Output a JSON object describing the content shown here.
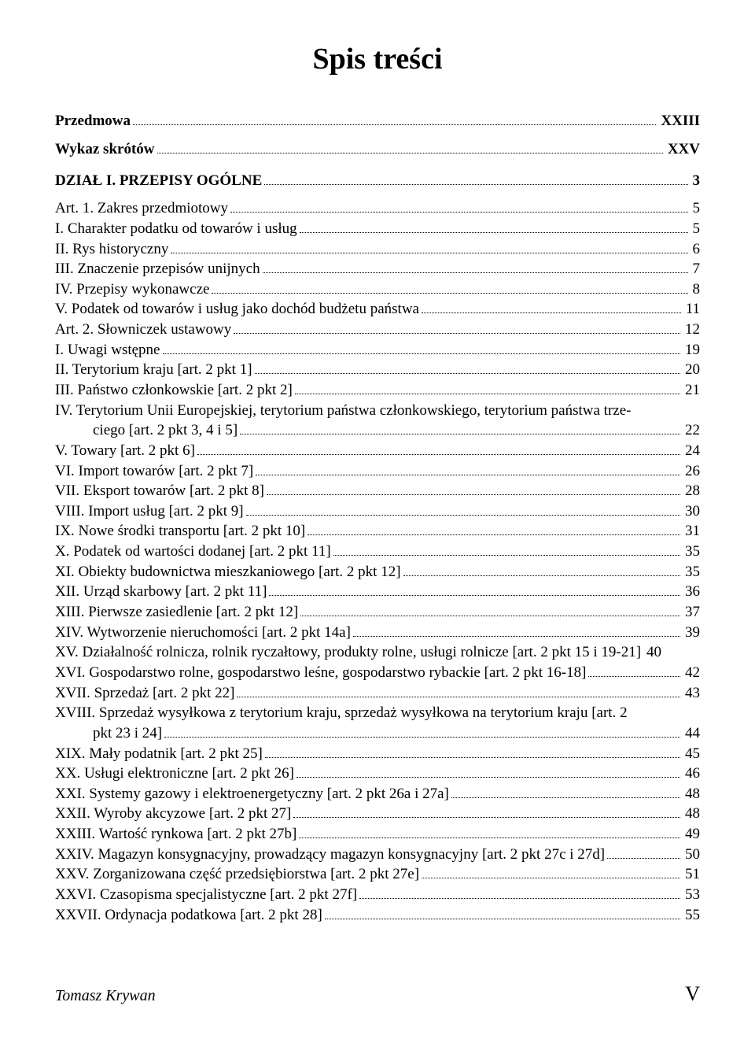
{
  "title": "Spis treści",
  "entries": [
    {
      "label": "Przedmowa",
      "page": "XXIII",
      "style": "level0",
      "spacer_after": "sm"
    },
    {
      "label": "Wykaz skrótów",
      "page": "XXV",
      "style": "level0",
      "spacer_after": "md"
    },
    {
      "label": "DZIAŁ I. PRZEPISY OGÓLNE",
      "page": "3",
      "style": "level0",
      "spacer_after": "sm"
    },
    {
      "label": "Art. 1. Zakres przedmiotowy",
      "page": "5",
      "style": "level1"
    },
    {
      "label": "I. Charakter podatku od towarów i usług",
      "page": "5",
      "style": "level2"
    },
    {
      "label": "II. Rys historyczny",
      "page": "6",
      "style": "level2"
    },
    {
      "label": "III. Znaczenie przepisów unijnych",
      "page": "7",
      "style": "level2"
    },
    {
      "label": "IV. Przepisy wykonawcze",
      "page": "8",
      "style": "level2"
    },
    {
      "label": "V. Podatek od towarów i usług jako dochód budżetu państwa",
      "page": "11",
      "style": "level2"
    },
    {
      "label": "Art. 2. Słowniczek ustawowy",
      "page": "12",
      "style": "level1"
    },
    {
      "label": "I. Uwagi wstępne",
      "page": "19",
      "style": "level2"
    },
    {
      "label": "II. Terytorium kraju [art. 2 pkt 1]",
      "page": "20",
      "style": "level2"
    },
    {
      "label": "III. Państwo członkowskie [art. 2 pkt 2]",
      "page": "21",
      "style": "level2"
    },
    {
      "label": "IV. Terytorium Unii Europejskiej, terytorium państwa członkowskiego, terytorium państwa trze-",
      "cont": "ciego [art. 2 pkt 3, 4 i 5]",
      "page": "22",
      "style": "level2",
      "wrap": true
    },
    {
      "label": "V. Towary [art. 2 pkt 6]",
      "page": "24",
      "style": "level2"
    },
    {
      "label": "VI. Import towarów [art. 2 pkt 7]",
      "page": "26",
      "style": "level2"
    },
    {
      "label": "VII. Eksport towarów [art. 2 pkt 8]",
      "page": "28",
      "style": "level2"
    },
    {
      "label": "VIII. Import usług [art. 2 pkt 9]",
      "page": "30",
      "style": "level2"
    },
    {
      "label": "IX. Nowe środki transportu [art. 2 pkt 10]",
      "page": "31",
      "style": "level2"
    },
    {
      "label": "X. Podatek od wartości dodanej [art. 2 pkt 11]",
      "page": "35",
      "style": "level2"
    },
    {
      "label": "XI. Obiekty budownictwa mieszkaniowego [art. 2 pkt 12]",
      "page": "35",
      "style": "level2"
    },
    {
      "label": "XII. Urząd skarbowy [art. 2 pkt 11]",
      "page": "36",
      "style": "level2"
    },
    {
      "label": "XIII. Pierwsze zasiedlenie [art. 2 pkt 12]",
      "page": "37",
      "style": "level2"
    },
    {
      "label": "XIV. Wytworzenie nieruchomości [art. 2 pkt 14a]",
      "page": "39",
      "style": "level2"
    },
    {
      "label": "XV. Działalność rolnicza, rolnik ryczałtowy, produkty rolne, usługi rolnicze [art. 2 pkt 15 i 19-21]",
      "page": "40",
      "style": "level2",
      "noleader": true
    },
    {
      "label": "XVI. Gospodarstwo rolne, gospodarstwo leśne, gospodarstwo rybackie [art. 2 pkt 16-18]",
      "page": "42",
      "style": "level2"
    },
    {
      "label": "XVII. Sprzedaż [art. 2 pkt 22]",
      "page": "43",
      "style": "level2"
    },
    {
      "label": "XVIII. Sprzedaż wysyłkowa z terytorium kraju, sprzedaż wysyłkowa na terytorium kraju [art. 2",
      "cont": "pkt 23 i 24]",
      "page": "44",
      "style": "level2",
      "wrap": true
    },
    {
      "label": "XIX. Mały podatnik [art. 2 pkt 25]",
      "page": "45",
      "style": "level2"
    },
    {
      "label": "XX. Usługi elektroniczne [art. 2 pkt 26]",
      "page": "46",
      "style": "level2"
    },
    {
      "label": "XXI. Systemy gazowy i elektroenergetyczny [art. 2 pkt 26a i 27a]",
      "page": "48",
      "style": "level2"
    },
    {
      "label": "XXII. Wyroby akcyzowe [art. 2 pkt 27]",
      "page": "48",
      "style": "level2"
    },
    {
      "label": "XXIII. Wartość rynkowa [art. 2 pkt 27b]",
      "page": "49",
      "style": "level2"
    },
    {
      "label": "XXIV. Magazyn konsygnacyjny, prowadzący magazyn konsygnacyjny [art. 2 pkt 27c i 27d]",
      "page": "50",
      "style": "level2"
    },
    {
      "label": "XXV. Zorganizowana część przedsiębiorstwa [art. 2 pkt 27e]",
      "page": "51",
      "style": "level2"
    },
    {
      "label": "XXVI. Czasopisma specjalistyczne [art. 2 pkt 27f]",
      "page": "53",
      "style": "level2"
    },
    {
      "label": "XXVII. Ordynacja podatkowa [art. 2 pkt 28]",
      "page": "55",
      "style": "level2"
    }
  ],
  "footer": {
    "author": "Tomasz Krywan",
    "roman": "V"
  },
  "colors": {
    "text": "#000000",
    "bg": "#ffffff"
  },
  "typography": {
    "title_size_pt": 28,
    "body_size_pt": 14,
    "family": "Times New Roman"
  }
}
